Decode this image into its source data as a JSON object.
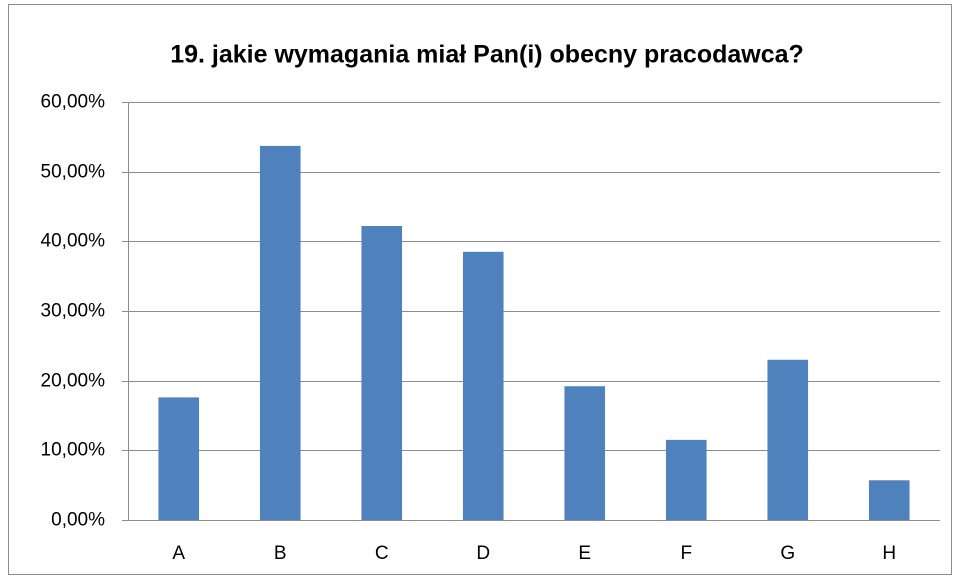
{
  "chart_data": {
    "type": "bar",
    "title": "19. jakie wymagania miał Pan(i) obecny pracodawca?",
    "categories": [
      "A",
      "B",
      "C",
      "D",
      "E",
      "F",
      "G",
      "H"
    ],
    "values": [
      17.6,
      53.7,
      42.2,
      38.5,
      19.2,
      11.5,
      23.0,
      5.7
    ],
    "color": "#4f81bd",
    "ylim": [
      0,
      60
    ],
    "yticks": [
      {
        "value": 0,
        "label": "0,00%"
      },
      {
        "value": 10,
        "label": "10,00%"
      },
      {
        "value": 20,
        "label": "20,00%"
      },
      {
        "value": 30,
        "label": "30,00%"
      },
      {
        "value": 40,
        "label": "40,00%"
      },
      {
        "value": 50,
        "label": "50,00%"
      },
      {
        "value": 60,
        "label": "60,00%"
      }
    ],
    "grid": true
  }
}
